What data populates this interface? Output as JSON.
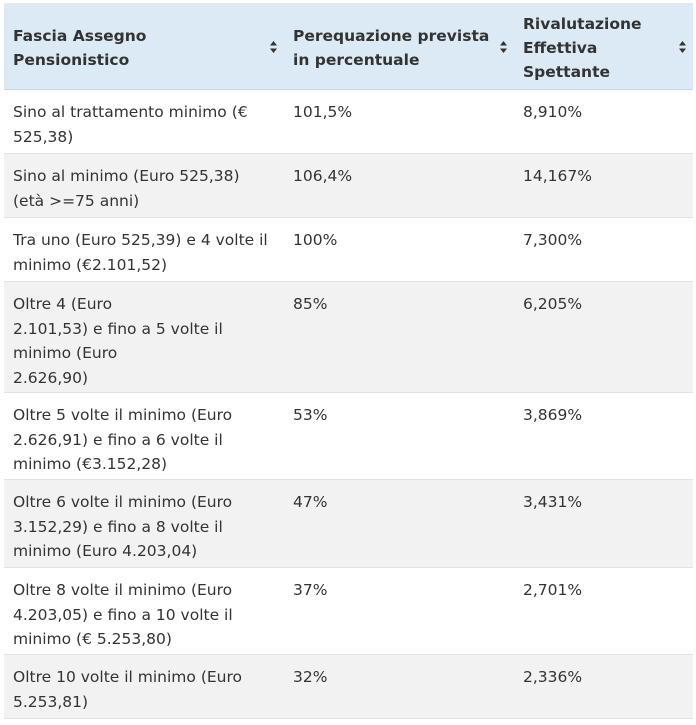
{
  "table": {
    "columns": [
      {
        "label_line1": "Fascia Assegno",
        "label_line2": "Pensionistico",
        "label_line3": ""
      },
      {
        "label_line1": "Perequazione prevista",
        "label_line2": "in percentuale",
        "label_line3": ""
      },
      {
        "label_line1": "Rivalutazione",
        "label_line2": "Effettiva",
        "label_line3": "Spettante"
      }
    ],
    "sort_icon": "sort-up-down-icon",
    "rows": [
      {
        "band": [
          "Sino al trattamento minimo (€",
          "525,38)"
        ],
        "perequazione": "101,5%",
        "rivalutazione": "8,910%"
      },
      {
        "band": [
          "Sino al minimo (Euro 525,38)",
          "(età >=75 anni)"
        ],
        "perequazione": "106,4%",
        "rivalutazione": "14,167%"
      },
      {
        "band": [
          "Tra uno (Euro 525,39) e 4 volte il",
          "minimo (€2.101,52)"
        ],
        "perequazione": "100%",
        "rivalutazione": "7,300%"
      },
      {
        "band": [
          "Oltre 4 (Euro",
          "2.101,53) e fino a 5 volte il",
          "minimo (Euro",
          "2.626,90)"
        ],
        "perequazione": "85%",
        "rivalutazione": "6,205%"
      },
      {
        "band": [
          "Oltre 5 volte il minimo (Euro",
          "2.626,91) e fino a 6 volte il",
          "minimo (€3.152,28)"
        ],
        "perequazione": "53%",
        "rivalutazione": "3,869%"
      },
      {
        "band": [
          "Oltre 6 volte il minimo (Euro",
          "3.152,29) e fino a 8 volte il",
          "minimo (Euro 4.203,04)"
        ],
        "perequazione": "47%",
        "rivalutazione": "3,431%"
      },
      {
        "band": [
          "Oltre 8 volte il minimo (Euro",
          "4.203,05) e fino a 10 volte il",
          "minimo (€ 5.253,80)"
        ],
        "perequazione": "37%",
        "rivalutazione": "2,701%"
      },
      {
        "band": [
          "Oltre 10 volte il minimo (Euro",
          "5.253,81)"
        ],
        "perequazione": "32%",
        "rivalutazione": "2,336%"
      }
    ]
  },
  "colors": {
    "header_bg": "#dbeaf4",
    "alt_row_bg": "#f2f2f2",
    "text": "#333333"
  }
}
